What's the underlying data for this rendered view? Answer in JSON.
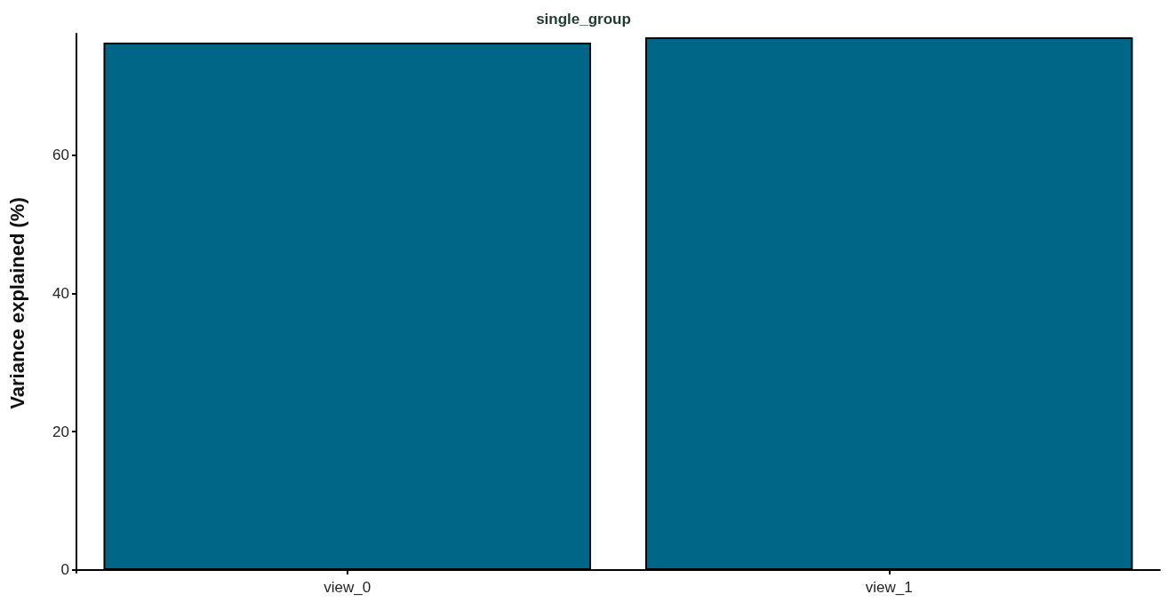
{
  "chart_data": {
    "type": "bar",
    "title": "single_group",
    "ylabel": "Variance explained (%)",
    "categories": [
      "view_0",
      "view_1"
    ],
    "series": [
      {
        "color": "#006687",
        "values": [
          76.3,
          77.1
        ]
      }
    ],
    "ylim": [
      -0.4,
      77.6
    ],
    "yticks": [
      0,
      20,
      40,
      60
    ],
    "grid": false
  }
}
